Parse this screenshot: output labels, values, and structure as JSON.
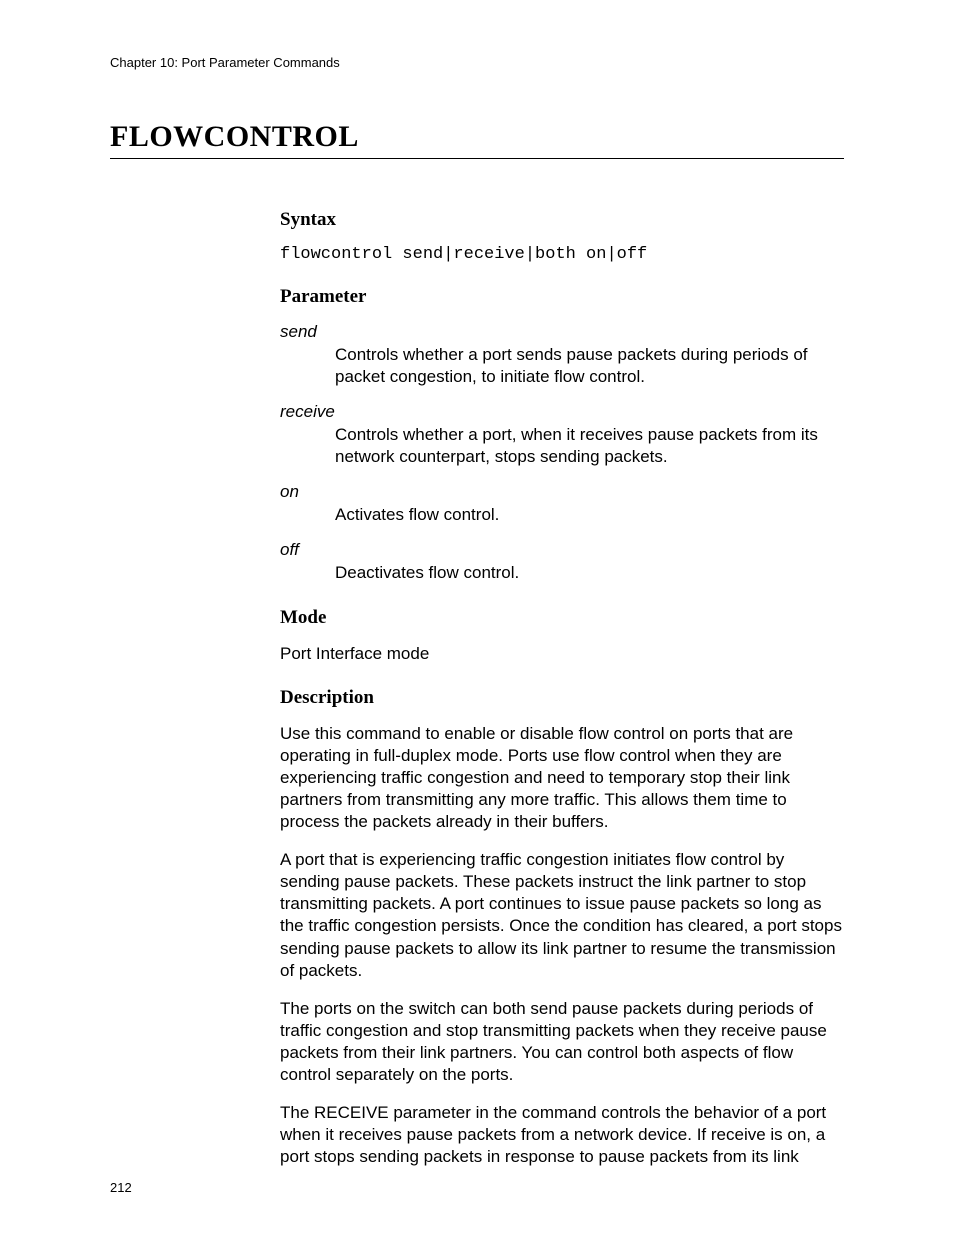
{
  "header": {
    "chapter_line": "Chapter 10: Port Parameter Commands"
  },
  "command_title": "FLOWCONTROL",
  "sections": {
    "syntax": {
      "heading": "Syntax",
      "code": "flowcontrol send|receive|both on|off"
    },
    "parameter": {
      "heading": "Parameter",
      "items": [
        {
          "name": "send",
          "desc": "Controls whether a port sends pause packets during periods of packet congestion, to initiate flow control."
        },
        {
          "name": "receive",
          "desc": "Controls whether a port, when it receives pause packets from its network counterpart, stops sending packets."
        },
        {
          "name": "on",
          "desc": "Activates flow control."
        },
        {
          "name": "off",
          "desc": "Deactivates flow control."
        }
      ]
    },
    "mode": {
      "heading": "Mode",
      "text": "Port Interface mode"
    },
    "description": {
      "heading": "Description",
      "paragraphs": [
        "Use this command to enable or disable flow control on ports that are operating in full-duplex mode. Ports use flow control when they are experiencing traffic congestion and need to temporary stop their link partners from transmitting any more traffic. This allows them time to process the packets already in their buffers.",
        "A port that is experiencing traffic congestion initiates flow control by sending pause packets. These packets instruct the link partner to stop transmitting packets. A port continues to issue pause packets so long as the traffic congestion persists. Once the condition has cleared, a port stops sending pause packets to allow its link partner to resume the transmission of packets.",
        "The ports on the switch can both send pause packets during periods of traffic congestion and stop transmitting packets when they receive pause packets from their link partners. You can control both aspects of flow control separately on the ports.",
        "The RECEIVE parameter in the command controls the behavior of a port when it receives pause packets from a network device. If receive is on, a port stops sending packets in response to pause packets from its link"
      ]
    }
  },
  "page_number": "212",
  "colors": {
    "text": "#000000",
    "background": "#ffffff",
    "rule": "#000000"
  },
  "fonts": {
    "body_family": "Arial, Helvetica, sans-serif",
    "body_size_pt": 13,
    "heading_family": "Times New Roman, Times, serif",
    "heading_size_pt": 14,
    "title_size_pt": 22,
    "code_family": "Courier New, Courier, monospace"
  }
}
